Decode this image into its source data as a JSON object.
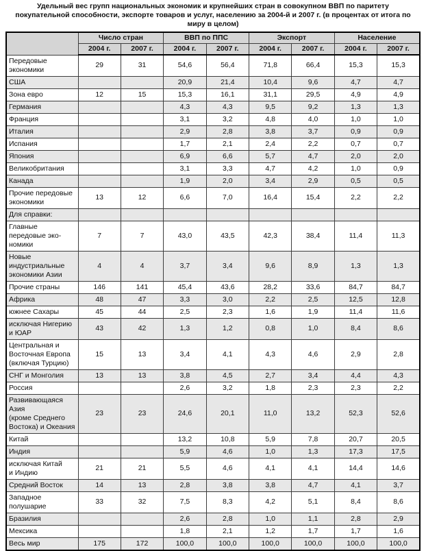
{
  "title": "Удельный вес групп национальных экономик и крупнейших стран в совокупном ВВП по паритету покупательной способности, экспорте товаров и услуг, населению за 2004-й и 2007 г. (в процентах от итога по миру в целом)",
  "table": {
    "group_headers": [
      "Число стран",
      "ВВП по ППС",
      "Экспорт",
      "Население"
    ],
    "year_headers": [
      "2004 г.",
      "2007 г.",
      "2004 г.",
      "2007 г.",
      "2004 г.",
      "2007 г.",
      "2004 г.",
      "2007 г."
    ],
    "rows": [
      {
        "label": "Передовые экономики",
        "values": [
          "29",
          "31",
          "54,6",
          "56,4",
          "71,8",
          "66,4",
          "15,3",
          "15,3"
        ]
      },
      {
        "label": "США",
        "values": [
          "",
          "",
          "20,9",
          "21,4",
          "10,4",
          "9,6",
          "4,7",
          "4,7"
        ]
      },
      {
        "label": "Зона евро",
        "values": [
          "12",
          "15",
          "15,3",
          "16,1",
          "31,1",
          "29,5",
          "4,9",
          "4,9"
        ]
      },
      {
        "label": "Германия",
        "values": [
          "",
          "",
          "4,3",
          "4,3",
          "9,5",
          "9,2",
          "1,3",
          "1,3"
        ]
      },
      {
        "label": "Франция",
        "values": [
          "",
          "",
          "3,1",
          "3,2",
          "4,8",
          "4,0",
          "1,0",
          "1,0"
        ]
      },
      {
        "label": "Италия",
        "values": [
          "",
          "",
          "2,9",
          "2,8",
          "3,8",
          "3,7",
          "0,9",
          "0,9"
        ]
      },
      {
        "label": "Испания",
        "values": [
          "",
          "",
          "1,7",
          "2,1",
          "2,4",
          "2,2",
          "0,7",
          "0,7"
        ]
      },
      {
        "label": "Япония",
        "values": [
          "",
          "",
          "6,9",
          "6,6",
          "5,7",
          "4,7",
          "2,0",
          "2,0"
        ]
      },
      {
        "label": "Великобритания",
        "values": [
          "",
          "",
          "3,1",
          "3,3",
          "4,7",
          "4,2",
          "1,0",
          "0,9"
        ]
      },
      {
        "label": "Канада",
        "values": [
          "",
          "",
          "1,9",
          "2,0",
          "3,4",
          "2,9",
          "0,5",
          "0,5"
        ]
      },
      {
        "label": "Прочие передовые\nэкономики",
        "values": [
          "13",
          "12",
          "6,6",
          "7,0",
          "16,4",
          "15,4",
          "2,2",
          "2,2"
        ]
      },
      {
        "label": "Для справки:",
        "values": [
          "",
          "",
          "",
          "",
          "",
          "",
          "",
          ""
        ]
      },
      {
        "label": "Главные передовые эко-\nномики",
        "values": [
          "7",
          "7",
          "43,0",
          "43,5",
          "42,3",
          "38,4",
          "11,4",
          "11,3"
        ]
      },
      {
        "label": "Новые индустриальные\nэкономики Азии",
        "values": [
          "4",
          "4",
          "3,7",
          "3,4",
          "9,6",
          "8,9",
          "1,3",
          "1,3"
        ]
      },
      {
        "label": "Прочие страны",
        "values": [
          "146",
          "141",
          "45,4",
          "43,6",
          "28,2",
          "33,6",
          "84,7",
          "84,7"
        ]
      },
      {
        "label": "Африка",
        "values": [
          "48",
          "47",
          "3,3",
          "3,0",
          "2,2",
          "2,5",
          "12,5",
          "12,8"
        ]
      },
      {
        "label": "южнее Сахары",
        "values": [
          "45",
          "44",
          "2,5",
          "2,3",
          "1,6",
          "1,9",
          "11,4",
          "11,6"
        ]
      },
      {
        "label": "исключая Нигерию\nи ЮАР",
        "values": [
          "43",
          "42",
          "1,3",
          "1,2",
          "0,8",
          "1,0",
          "8,4",
          "8,6"
        ]
      },
      {
        "label": "Центральная и\nВосточная Европа\n(включая Турцию)",
        "values": [
          "15",
          "13",
          "3,4",
          "4,1",
          "4,3",
          "4,6",
          "2,9",
          "2,8"
        ]
      },
      {
        "label": "СНГ и Монголия",
        "values": [
          "13",
          "13",
          "3,8",
          "4,5",
          "2,7",
          "3,4",
          "4,4",
          "4,3"
        ]
      },
      {
        "label": "Россия",
        "values": [
          "",
          "",
          "2,6",
          "3,2",
          "1,8",
          "2,3",
          "2,3",
          "2,2"
        ]
      },
      {
        "label": "Развивающаяся Азия\n(кроме Среднего\nВостока) и Океания",
        "values": [
          "23",
          "23",
          "24,6",
          "20,1",
          "11,0",
          "13,2",
          "52,3",
          "52,6"
        ]
      },
      {
        "label": "Китай",
        "values": [
          "",
          "",
          "13,2",
          "10,8",
          "5,9",
          "7,8",
          "20,7",
          "20,5"
        ]
      },
      {
        "label": "Индия",
        "values": [
          "",
          "",
          "5,9",
          "4,6",
          "1,0",
          "1,3",
          "17,3",
          "17,5"
        ]
      },
      {
        "label": "исключая Китай\nи Индию",
        "values": [
          "21",
          "21",
          "5,5",
          "4,6",
          "4,1",
          "4,1",
          "14,4",
          "14,6"
        ]
      },
      {
        "label": "Средний Восток",
        "values": [
          "14",
          "13",
          "2,8",
          "3,8",
          "3,8",
          "4,7",
          "4,1",
          "3,7"
        ]
      },
      {
        "label": "Западное полушарие",
        "values": [
          "33",
          "32",
          "7,5",
          "8,3",
          "4,2",
          "5,1",
          "8,4",
          "8,6"
        ]
      },
      {
        "label": "Бразилия",
        "values": [
          "",
          "",
          "2,6",
          "2,8",
          "1,0",
          "1,1",
          "2,8",
          "2,9"
        ]
      },
      {
        "label": "Мексика",
        "values": [
          "",
          "",
          "1,8",
          "2,1",
          "1,2",
          "1,7",
          "1,7",
          "1,6"
        ]
      },
      {
        "label": "Весь мир",
        "values": [
          "175",
          "172",
          "100,0",
          "100,0",
          "100,0",
          "100,0",
          "100,0",
          "100,0"
        ]
      }
    ]
  },
  "colors": {
    "header_bg": "#d5d5d5",
    "row_alt_bg": "#e7e7e7",
    "border": "#3c3c3c",
    "outer_border": "#000000"
  }
}
